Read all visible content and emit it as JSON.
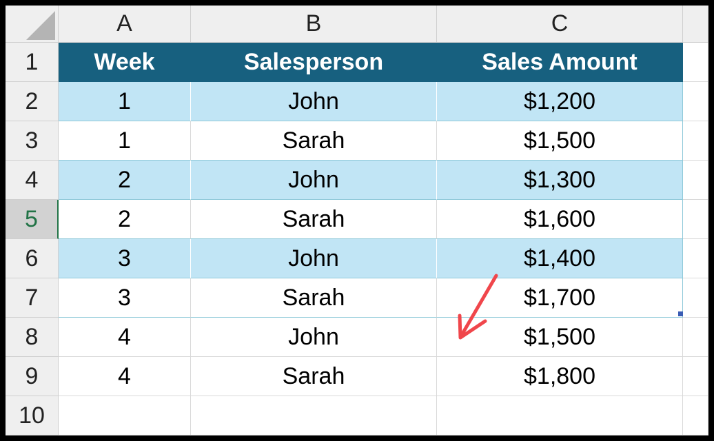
{
  "column_headers": [
    "A",
    "B",
    "C"
  ],
  "row_headers": [
    "1",
    "2",
    "3",
    "4",
    "5",
    "6",
    "7",
    "8",
    "9",
    "10"
  ],
  "table": {
    "header": [
      "Week",
      "Salesperson",
      "Sales Amount"
    ],
    "rows": [
      [
        "1",
        "John",
        "$1,200"
      ],
      [
        "1",
        "Sarah",
        "$1,500"
      ],
      [
        "2",
        "John",
        "$1,300"
      ],
      [
        "2",
        "Sarah",
        "$1,600"
      ],
      [
        "3",
        "John",
        "$1,400"
      ],
      [
        "3",
        "Sarah",
        "$1,700"
      ],
      [
        "4",
        "John",
        "$1,500"
      ],
      [
        "4",
        "Sarah",
        "$1,800"
      ]
    ]
  }
}
